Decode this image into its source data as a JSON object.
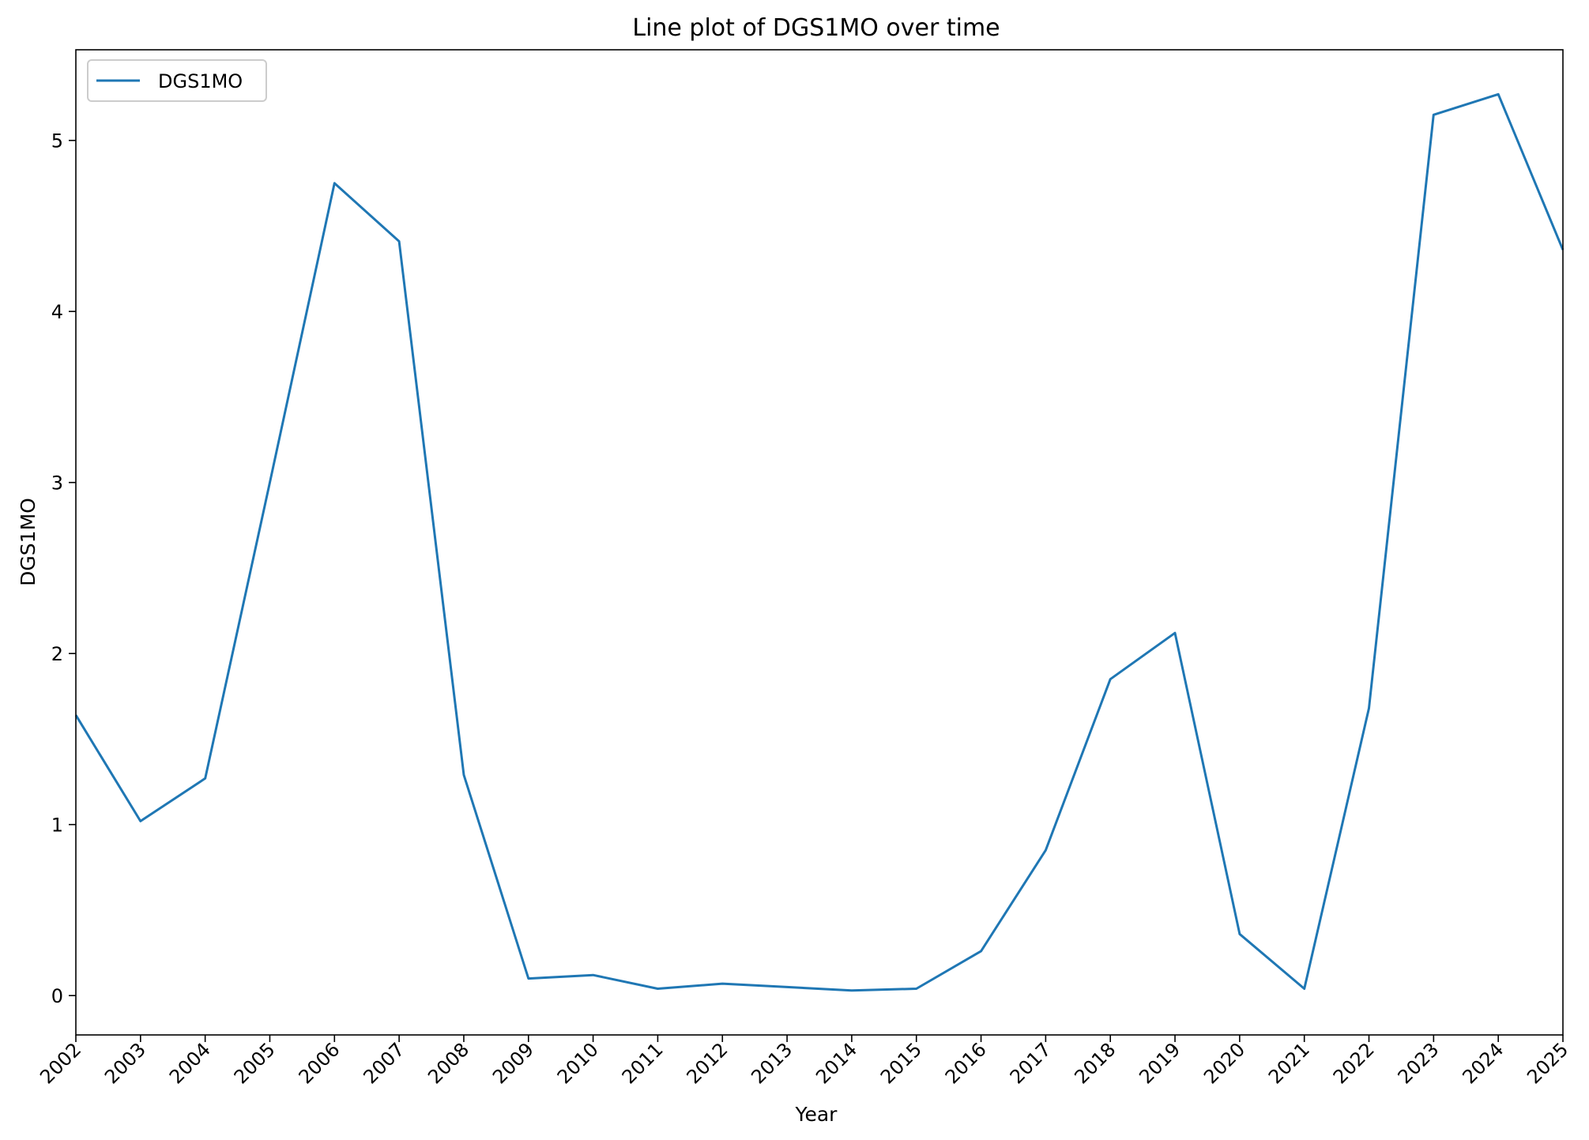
{
  "chart_data": {
    "type": "line",
    "title": "Line plot of DGS1MO over time",
    "xlabel": "Year",
    "ylabel": "DGS1MO",
    "categories": [
      "2002",
      "2003",
      "2004",
      "2005",
      "2006",
      "2007",
      "2008",
      "2009",
      "2010",
      "2011",
      "2012",
      "2013",
      "2014",
      "2015",
      "2016",
      "2017",
      "2018",
      "2019",
      "2020",
      "2021",
      "2022",
      "2023",
      "2024",
      "2025"
    ],
    "series": [
      {
        "name": "DGS1MO",
        "color": "#1f77b4",
        "values": [
          1.64,
          1.02,
          1.27,
          3.0,
          4.75,
          4.41,
          1.29,
          0.1,
          0.12,
          0.04,
          0.07,
          0.05,
          0.03,
          0.04,
          0.26,
          0.85,
          1.85,
          2.12,
          0.36,
          0.04,
          1.68,
          5.15,
          5.27,
          4.36
        ]
      }
    ],
    "ylim": [
      -0.23,
      5.53
    ],
    "yticks": [
      "0",
      "1",
      "2",
      "3",
      "4",
      "5"
    ],
    "grid": false,
    "legend": "upper-left",
    "x_tick_rotation_deg": 45
  }
}
